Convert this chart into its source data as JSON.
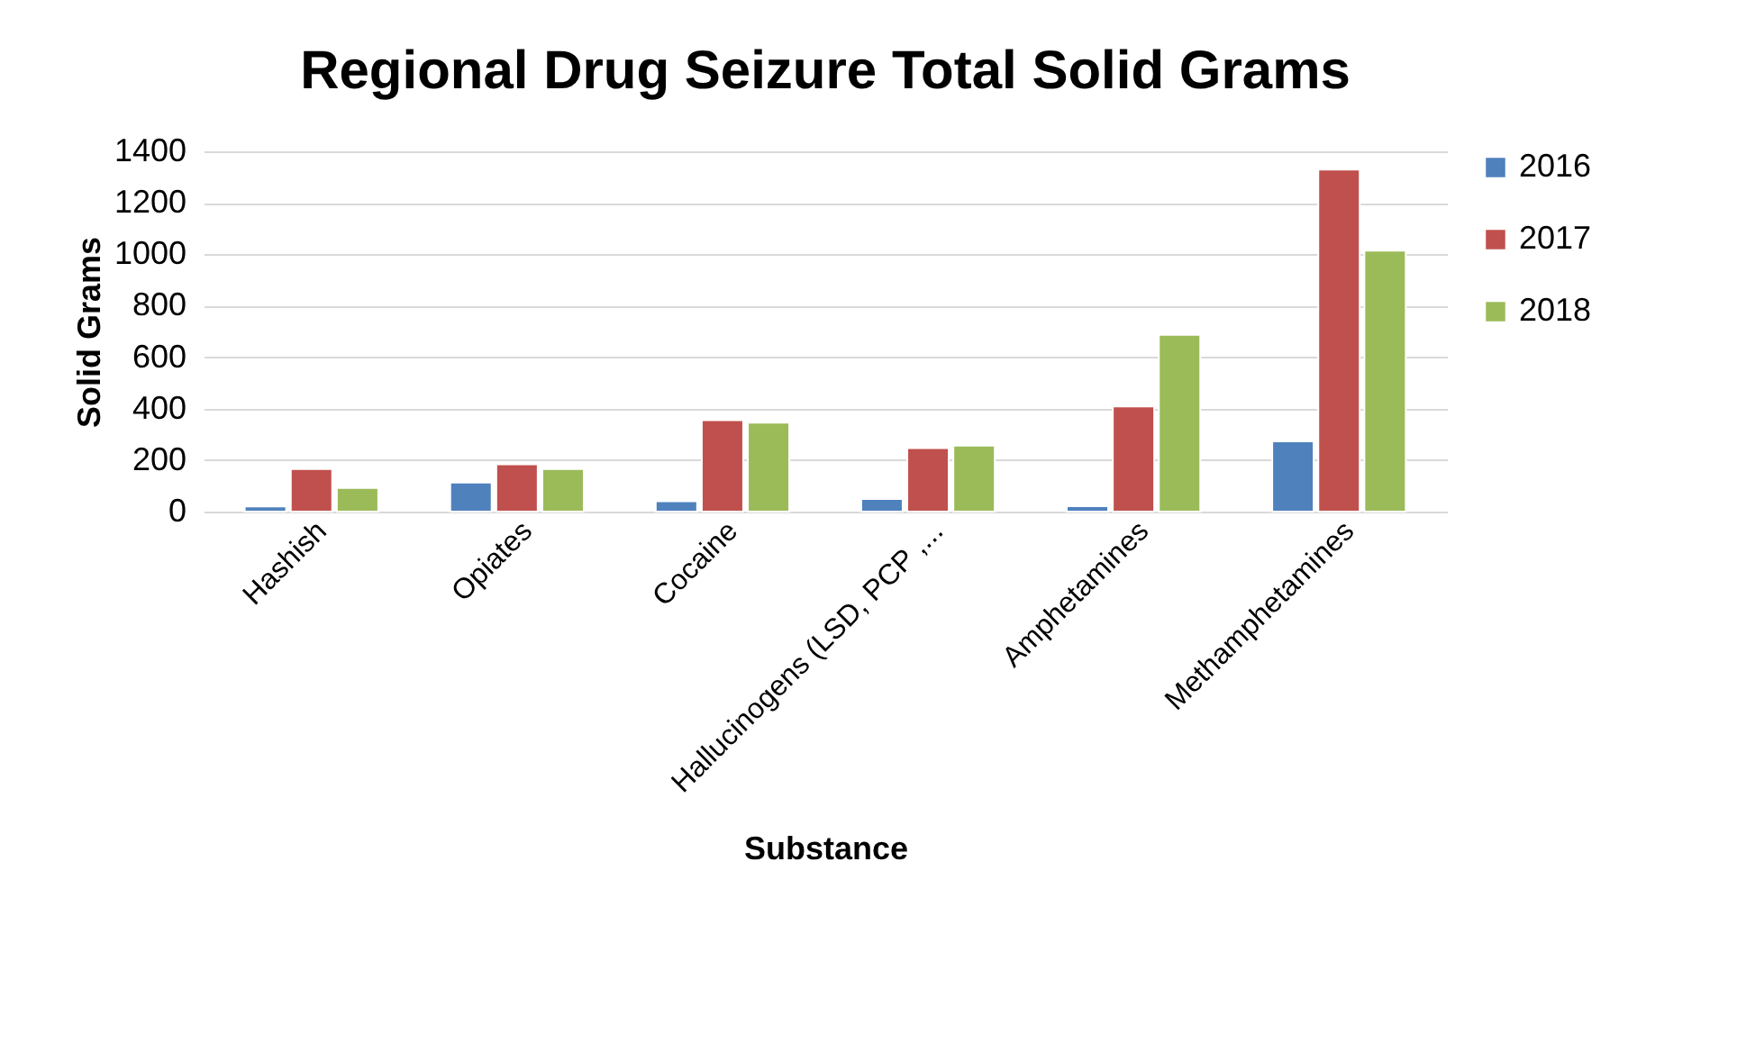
{
  "chart_data": {
    "type": "bar",
    "title": "Regional Drug Seizure Total Solid Grams",
    "xlabel": "Substance",
    "ylabel": "Solid Grams",
    "categories": [
      "Hashish",
      "Opiates",
      "Cocaine",
      "Hallucinogens (LSD, PCP ,...",
      "Amphetamines",
      "Methamphetamines"
    ],
    "series": [
      {
        "name": "2016",
        "color": "#4f81bd",
        "values": [
          20,
          113,
          40,
          49,
          21,
          273
        ]
      },
      {
        "name": "2017",
        "color": "#c0504d",
        "values": [
          165,
          184,
          355,
          247,
          409,
          1329
        ]
      },
      {
        "name": "2018",
        "color": "#9bbb59",
        "values": [
          92,
          165,
          346,
          256,
          687,
          1014
        ]
      }
    ],
    "ylim": [
      0,
      1400
    ],
    "yticks": [
      0,
      200,
      400,
      600,
      800,
      1000,
      1200,
      1400
    ],
    "grid": "y",
    "legend": "right"
  }
}
